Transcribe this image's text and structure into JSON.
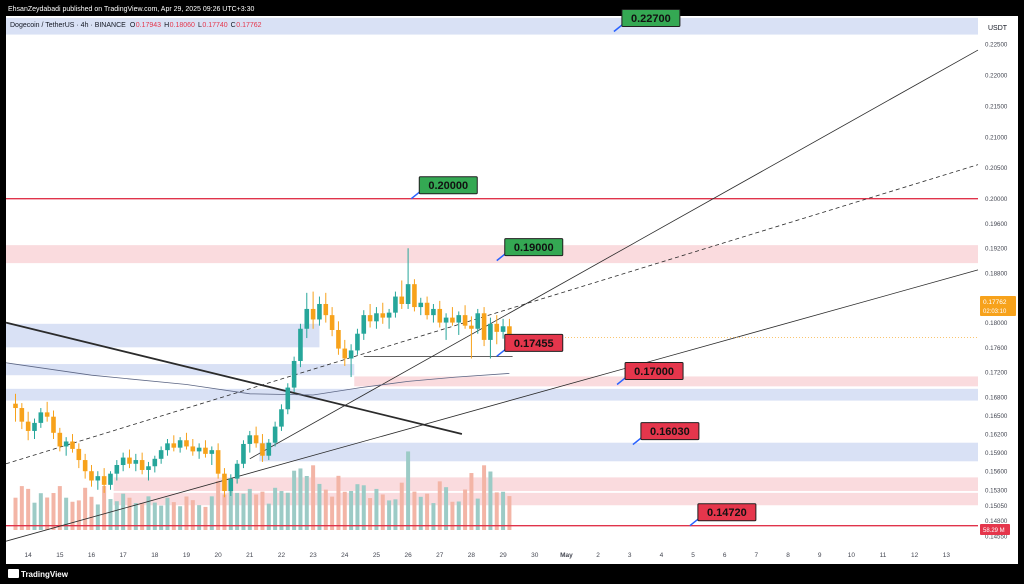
{
  "header": {
    "published": "EhsanZeydabadi published on TradingView.com, Apr 29, 2025 09:26 UTC+3:30",
    "symbol": "Dogecoin / TetherUS · 4h · BINANCE",
    "ohlc": [
      {
        "key": "O",
        "value": "0.17943"
      },
      {
        "key": "H",
        "value": "0.18060"
      },
      {
        "key": "L",
        "value": "0.17740"
      },
      {
        "key": "C",
        "value": "0.17762"
      }
    ]
  },
  "footer": {
    "brand": "TradingView"
  },
  "colors": {
    "up": "#26a69a",
    "down": "#f7a21b",
    "support_red": "#e0334a",
    "green_label": "#34a853",
    "red_label": "#e5364c",
    "blue_zone": "#cfd9f3",
    "pink_zone": "#f9d2d6",
    "volume_up": "#9ccbc6",
    "volume_down": "#f3b5a6"
  },
  "chart_data": {
    "type": "candlestick",
    "quote_currency": "USDT",
    "timeframe": "4h",
    "ylim": [
      0.1436,
      0.2295
    ],
    "y_ticks": [
      "0.22500",
      "0.22000",
      "0.21500",
      "0.21000",
      "0.20500",
      "0.20000",
      "0.19600",
      "0.19200",
      "0.18800",
      "0.18400",
      "0.18000",
      "0.17600",
      "0.17200",
      "0.16800",
      "0.16500",
      "0.16200",
      "0.15900",
      "0.15600",
      "0.15300",
      "0.15050",
      "0.14800",
      "0.14550"
    ],
    "x_ticks": [
      {
        "label": "14",
        "day": 14
      },
      {
        "label": "15",
        "day": 15
      },
      {
        "label": "16",
        "day": 16
      },
      {
        "label": "17",
        "day": 17
      },
      {
        "label": "18",
        "day": 18
      },
      {
        "label": "19",
        "day": 19
      },
      {
        "label": "20",
        "day": 20
      },
      {
        "label": "21",
        "day": 21
      },
      {
        "label": "22",
        "day": 22
      },
      {
        "label": "23",
        "day": 23
      },
      {
        "label": "24",
        "day": 24
      },
      {
        "label": "25",
        "day": 25
      },
      {
        "label": "26",
        "day": 26
      },
      {
        "label": "27",
        "day": 27
      },
      {
        "label": "28",
        "day": 28
      },
      {
        "label": "29",
        "day": 29
      },
      {
        "label": "30",
        "day": 30
      },
      {
        "label": "May",
        "day": 31
      },
      {
        "label": "2",
        "day": 32
      },
      {
        "label": "3",
        "day": 33
      },
      {
        "label": "4",
        "day": 34
      },
      {
        "label": "5",
        "day": 35
      },
      {
        "label": "6",
        "day": 36
      },
      {
        "label": "7",
        "day": 37
      },
      {
        "label": "8",
        "day": 38
      },
      {
        "label": "9",
        "day": 39
      },
      {
        "label": "10",
        "day": 40
      },
      {
        "label": "11",
        "day": 41
      },
      {
        "label": "12",
        "day": 42
      },
      {
        "label": "13",
        "day": 43
      }
    ],
    "last_price": "0.17762",
    "countdown": "02:03:10",
    "volume_last": "58.29 M",
    "levels": [
      {
        "value": 0.227,
        "label": "0.22700",
        "style": "green",
        "anchor_day": 32.5
      },
      {
        "value": 0.2,
        "label": "0.20000",
        "style": "green",
        "anchor_day": 26.1
      },
      {
        "value": 0.19,
        "label": "0.19000",
        "style": "green",
        "anchor_day": 28.8
      },
      {
        "value": 0.17455,
        "label": "0.17455",
        "style": "red",
        "anchor_day": 28.8
      },
      {
        "value": 0.17,
        "label": "0.17000",
        "style": "red",
        "anchor_day": 32.6
      },
      {
        "value": 0.1603,
        "label": "0.16030",
        "style": "red",
        "anchor_day": 33.1
      },
      {
        "value": 0.1472,
        "label": "0.14720",
        "style": "red",
        "anchor_day": 34.9
      }
    ],
    "horizontal_lines": [
      {
        "value": 0.2,
        "color": "#e0334a"
      },
      {
        "value": 0.1472,
        "color": "#e0334a"
      }
    ],
    "zones": [
      {
        "kind": "blue",
        "from_day": 13.3,
        "to_day": 44.0,
        "low": 0.2265,
        "high": 0.2292
      },
      {
        "kind": "pink",
        "from_day": 13.3,
        "to_day": 44.0,
        "low": 0.1896,
        "high": 0.1925
      },
      {
        "kind": "blue",
        "from_day": 13.3,
        "to_day": 23.2,
        "low": 0.176,
        "high": 0.1798
      },
      {
        "kind": "blue",
        "from_day": 13.3,
        "to_day": 24.3,
        "low": 0.1715,
        "high": 0.1733
      },
      {
        "kind": "pink",
        "from_day": 24.3,
        "to_day": 44.0,
        "low": 0.1697,
        "high": 0.1713
      },
      {
        "kind": "blue",
        "from_day": 13.3,
        "to_day": 44.0,
        "low": 0.1674,
        "high": 0.1693
      },
      {
        "kind": "blue",
        "from_day": 21.3,
        "to_day": 44.0,
        "low": 0.1576,
        "high": 0.1606
      },
      {
        "kind": "pink",
        "from_day": 16.7,
        "to_day": 44.0,
        "low": 0.1528,
        "high": 0.155
      },
      {
        "kind": "pink",
        "from_day": 16.7,
        "to_day": 44.0,
        "low": 0.1505,
        "high": 0.1525
      }
    ],
    "trendlines": [
      {
        "name": "channel-upper",
        "style": "solid",
        "from": [
          21.0,
          0.158
        ],
        "to": [
          44.0,
          0.224
        ]
      },
      {
        "name": "channel-middle",
        "style": "dashed",
        "from": [
          13.3,
          0.1572
        ],
        "to": [
          44.0,
          0.2055
        ]
      },
      {
        "name": "channel-lower",
        "style": "solid",
        "from": [
          13.3,
          0.1447
        ],
        "to": [
          44.0,
          0.1885
        ]
      },
      {
        "name": "downtrend",
        "style": "solid-bold",
        "from": [
          13.3,
          0.18
        ],
        "to": [
          27.7,
          0.162
        ]
      },
      {
        "name": "range-base",
        "style": "solid",
        "from": [
          24.6,
          0.1745
        ],
        "to": [
          29.3,
          0.1745
        ]
      },
      {
        "name": "moving-average",
        "style": "curve",
        "points": [
          [
            13.3,
            0.1735
          ],
          [
            16.0,
            0.1715
          ],
          [
            19.0,
            0.17
          ],
          [
            21.0,
            0.1685
          ],
          [
            23.0,
            0.1683
          ],
          [
            24.5,
            0.1695
          ],
          [
            26.0,
            0.1705
          ],
          [
            27.5,
            0.1712
          ],
          [
            29.2,
            0.1718
          ]
        ]
      }
    ],
    "candles": [
      [
        13.6,
        0.1669,
        0.1685,
        0.164,
        0.1662
      ],
      [
        13.8,
        0.1662,
        0.167,
        0.1628,
        0.164
      ],
      [
        14.0,
        0.164,
        0.1656,
        0.161,
        0.1625
      ],
      [
        14.2,
        0.1625,
        0.1645,
        0.1612,
        0.1638
      ],
      [
        14.4,
        0.1638,
        0.1662,
        0.163,
        0.1655
      ],
      [
        14.6,
        0.1655,
        0.1672,
        0.164,
        0.1648
      ],
      [
        14.8,
        0.1648,
        0.1658,
        0.1612,
        0.1622
      ],
      [
        15.0,
        0.1622,
        0.163,
        0.1592,
        0.16
      ],
      [
        15.2,
        0.16,
        0.1615,
        0.1585,
        0.1608
      ],
      [
        15.4,
        0.1608,
        0.162,
        0.159,
        0.1596
      ],
      [
        15.6,
        0.1596,
        0.1605,
        0.1565,
        0.1578
      ],
      [
        15.8,
        0.1578,
        0.1588,
        0.1548,
        0.156
      ],
      [
        16.0,
        0.156,
        0.157,
        0.1535,
        0.1545
      ],
      [
        16.2,
        0.1545,
        0.156,
        0.153,
        0.1552
      ],
      [
        16.4,
        0.1552,
        0.1565,
        0.1525,
        0.1538
      ],
      [
        16.6,
        0.1538,
        0.156,
        0.153,
        0.1556
      ],
      [
        16.8,
        0.1556,
        0.1578,
        0.1545,
        0.157
      ],
      [
        17.0,
        0.157,
        0.159,
        0.156,
        0.1582
      ],
      [
        17.2,
        0.1582,
        0.1595,
        0.1565,
        0.1572
      ],
      [
        17.4,
        0.1572,
        0.1588,
        0.156,
        0.1578
      ],
      [
        17.6,
        0.1578,
        0.159,
        0.1555,
        0.1562
      ],
      [
        17.8,
        0.1562,
        0.1575,
        0.1545,
        0.1568
      ],
      [
        18.0,
        0.1568,
        0.1585,
        0.1558,
        0.158
      ],
      [
        18.2,
        0.158,
        0.16,
        0.1572,
        0.1594
      ],
      [
        18.4,
        0.1594,
        0.1612,
        0.1585,
        0.1605
      ],
      [
        18.6,
        0.1605,
        0.1618,
        0.1592,
        0.1598
      ],
      [
        18.8,
        0.1598,
        0.1615,
        0.159,
        0.161
      ],
      [
        19.0,
        0.161,
        0.1622,
        0.1595,
        0.16
      ],
      [
        19.2,
        0.16,
        0.1612,
        0.1585,
        0.1592
      ],
      [
        19.4,
        0.1592,
        0.1605,
        0.158,
        0.1598
      ],
      [
        19.6,
        0.1598,
        0.161,
        0.1582,
        0.1588
      ],
      [
        19.8,
        0.1588,
        0.16,
        0.157,
        0.1594
      ],
      [
        20.0,
        0.1594,
        0.1605,
        0.1548,
        0.1556
      ],
      [
        20.2,
        0.1556,
        0.1565,
        0.1518,
        0.1528
      ],
      [
        20.4,
        0.1528,
        0.1555,
        0.152,
        0.1548
      ],
      [
        20.6,
        0.1548,
        0.1578,
        0.154,
        0.1572
      ],
      [
        20.8,
        0.1572,
        0.161,
        0.1565,
        0.1604
      ],
      [
        21.0,
        0.1604,
        0.1625,
        0.159,
        0.1618
      ],
      [
        21.2,
        0.1618,
        0.1632,
        0.1598,
        0.1605
      ],
      [
        21.4,
        0.1605,
        0.162,
        0.1575,
        0.1585
      ],
      [
        21.6,
        0.1585,
        0.1612,
        0.1578,
        0.1606
      ],
      [
        21.8,
        0.1606,
        0.164,
        0.16,
        0.1632
      ],
      [
        22.0,
        0.1632,
        0.1668,
        0.1625,
        0.166
      ],
      [
        22.2,
        0.166,
        0.1702,
        0.1652,
        0.1695
      ],
      [
        22.4,
        0.1695,
        0.1745,
        0.1688,
        0.1738
      ],
      [
        22.6,
        0.1738,
        0.1798,
        0.1728,
        0.179
      ],
      [
        22.8,
        0.179,
        0.1848,
        0.1775,
        0.1822
      ],
      [
        23.0,
        0.1822,
        0.185,
        0.179,
        0.1805
      ],
      [
        23.2,
        0.1805,
        0.1842,
        0.1795,
        0.183
      ],
      [
        23.4,
        0.183,
        0.1848,
        0.18,
        0.1812
      ],
      [
        23.6,
        0.1812,
        0.1825,
        0.1778,
        0.1788
      ],
      [
        23.8,
        0.1788,
        0.1802,
        0.1748,
        0.1758
      ],
      [
        24.0,
        0.1758,
        0.1772,
        0.173,
        0.1742
      ],
      [
        24.2,
        0.1742,
        0.1765,
        0.1712,
        0.1755
      ],
      [
        24.4,
        0.1755,
        0.179,
        0.1748,
        0.1782
      ],
      [
        24.6,
        0.1782,
        0.182,
        0.1772,
        0.1812
      ],
      [
        24.8,
        0.1812,
        0.183,
        0.1792,
        0.1802
      ],
      [
        25.0,
        0.1802,
        0.1825,
        0.179,
        0.1815
      ],
      [
        25.2,
        0.1815,
        0.1832,
        0.1798,
        0.1808
      ],
      [
        25.4,
        0.1808,
        0.1822,
        0.179,
        0.1816
      ],
      [
        25.6,
        0.1816,
        0.185,
        0.1808,
        0.1842
      ],
      [
        25.8,
        0.1842,
        0.1868,
        0.1822,
        0.183
      ],
      [
        26.0,
        0.183,
        0.192,
        0.1822,
        0.1862
      ],
      [
        26.2,
        0.1862,
        0.187,
        0.1818,
        0.1825
      ],
      [
        26.4,
        0.1825,
        0.184,
        0.1812,
        0.1832
      ],
      [
        26.6,
        0.1832,
        0.1842,
        0.1805,
        0.1812
      ],
      [
        26.8,
        0.1812,
        0.183,
        0.18,
        0.1822
      ],
      [
        27.0,
        0.1822,
        0.1835,
        0.1792,
        0.18
      ],
      [
        27.2,
        0.18,
        0.1815,
        0.1772,
        0.1808
      ],
      [
        27.4,
        0.1808,
        0.1825,
        0.1795,
        0.18
      ],
      [
        27.6,
        0.18,
        0.1818,
        0.178,
        0.1812
      ],
      [
        27.8,
        0.1812,
        0.1828,
        0.179,
        0.1795
      ],
      [
        28.0,
        0.1795,
        0.181,
        0.1742,
        0.179
      ],
      [
        28.2,
        0.179,
        0.1822,
        0.1782,
        0.1815
      ],
      [
        28.4,
        0.1815,
        0.1825,
        0.1762,
        0.1772
      ],
      [
        28.6,
        0.1772,
        0.1808,
        0.1742,
        0.1798
      ],
      [
        28.8,
        0.1798,
        0.1812,
        0.1765,
        0.1785
      ],
      [
        29.0,
        0.1785,
        0.1806,
        0.1774,
        0.1794
      ],
      [
        29.2,
        0.1794,
        0.1806,
        0.1774,
        0.1776
      ]
    ]
  }
}
